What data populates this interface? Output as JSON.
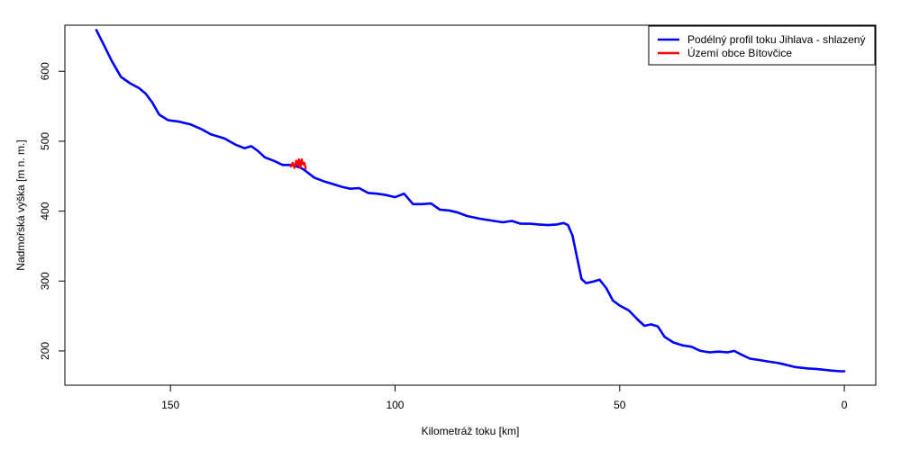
{
  "chart_data": {
    "type": "line",
    "xlabel": "Kilometráž toku [km]",
    "ylabel": "Nadmořská výška [m n. m.]",
    "xlim": [
      173.5,
      -7
    ],
    "ylim": [
      151,
      666
    ],
    "x_reversed": true,
    "x_ticks": [
      150,
      100,
      50,
      0
    ],
    "y_ticks": [
      200,
      300,
      400,
      500,
      600
    ],
    "grid": false,
    "legend_position": "top-right",
    "series": [
      {
        "name": "Podélný profil toku Jihlava - shlazený",
        "color": "#0000ff",
        "x": [
          166.5,
          165,
          163,
          161,
          159,
          157,
          155.5,
          154,
          152.5,
          150.5,
          148,
          145.5,
          143,
          141,
          138,
          135.5,
          133.5,
          132,
          130.5,
          129,
          127,
          125,
          123,
          121,
          120,
          118,
          116,
          114,
          112,
          110,
          108,
          106,
          104,
          102,
          100,
          98,
          96,
          94,
          92,
          90,
          88,
          86,
          84,
          81,
          78,
          76,
          74,
          72,
          70,
          68,
          66,
          64,
          62.5,
          61.5,
          60.5,
          59.5,
          58.5,
          57.5,
          56,
          54.5,
          53,
          51.5,
          50,
          48,
          46,
          44.5,
          43,
          41.5,
          40,
          38,
          36,
          34,
          32,
          30,
          28,
          26,
          24.5,
          23,
          21,
          19,
          17,
          15,
          13.5,
          11,
          8,
          6,
          3,
          1,
          0
        ],
        "y": [
          659,
          640,
          614,
          592,
          583,
          576,
          568,
          555,
          538,
          530,
          528,
          524,
          517,
          510,
          504,
          495,
          490,
          493,
          486,
          477,
          472,
          466,
          466,
          462,
          458,
          448,
          443,
          439,
          435,
          432,
          433,
          426,
          425,
          423,
          420,
          425,
          410,
          410,
          411,
          402,
          401,
          398,
          393,
          389,
          386,
          384,
          386,
          382,
          382,
          381,
          380,
          381,
          383,
          380,
          365,
          334,
          303,
          297,
          299,
          302,
          290,
          272,
          265,
          258,
          245,
          236,
          238,
          235,
          220,
          212,
          208,
          206,
          200,
          198,
          199,
          198,
          200,
          195,
          189,
          187,
          185,
          183,
          181,
          177,
          175,
          174,
          172,
          171,
          171
        ]
      },
      {
        "name": "Území obce Bítovčice",
        "color": "#ff0000",
        "x": [
          123.2,
          122.8,
          122.4,
          122.0,
          121.7,
          121.4,
          121.1,
          120.8,
          120.5,
          120.2,
          119.9
        ],
        "y": [
          464,
          469,
          462,
          472,
          466,
          474,
          462,
          474,
          467,
          469,
          461
        ]
      }
    ]
  }
}
